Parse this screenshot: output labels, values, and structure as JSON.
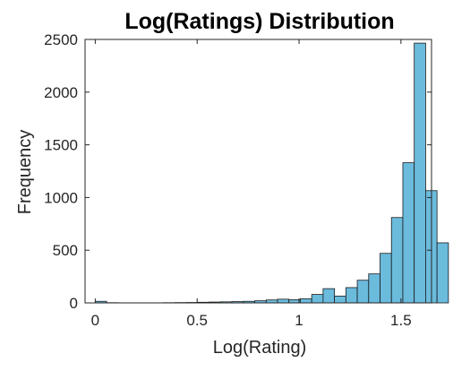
{
  "colors": {
    "bar_fill": "#6bbbdd",
    "bar_edge": "#1a1a1a",
    "axis": "#262626"
  },
  "chart_data": {
    "type": "bar",
    "title": "Log(Ratings) Distribution",
    "xlabel": "Log(Rating)",
    "ylabel": "Frequency",
    "xlim": [
      -0.05,
      1.65
    ],
    "ylim": [
      0,
      2500
    ],
    "xticks": [
      0,
      0.5,
      1,
      1.5
    ],
    "xtick_labels": [
      "0",
      "0.5",
      "1",
      "1.5"
    ],
    "yticks": [
      0,
      500,
      1000,
      1500,
      2000,
      2500
    ],
    "ytick_labels": [
      "0",
      "500",
      "1000",
      "1500",
      "2000",
      "2500"
    ],
    "bin_width": 0.0559,
    "bin_edges_start": 0,
    "values": [
      15,
      2,
      1,
      1,
      1,
      1,
      2,
      3,
      4,
      6,
      8,
      10,
      12,
      15,
      20,
      28,
      35,
      30,
      40,
      80,
      135,
      65,
      145,
      215,
      275,
      470,
      810,
      1330,
      2465,
      1065,
      570
    ],
    "grid": false,
    "legend": "none"
  }
}
